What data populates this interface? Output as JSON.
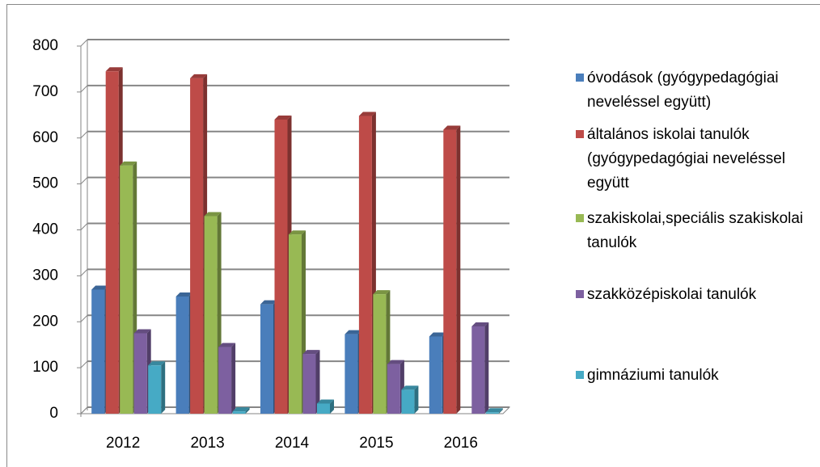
{
  "chart_data": {
    "type": "bar3d",
    "categories": [
      "2012",
      "2013",
      "2014",
      "2015",
      "2016"
    ],
    "series": [
      {
        "name": "óvodások (gyógypedagógiai neveléssel együtt)",
        "color": "#4a7ebb",
        "values": [
          270,
          255,
          238,
          173,
          168
        ]
      },
      {
        "name": "általános iskolai tanulók (gyógypedagógiai neveléssel együtt",
        "color": "#be4b48",
        "values": [
          745,
          730,
          640,
          648,
          618
        ]
      },
      {
        "name": "szakiskolai,speciális szakiskolai tanulók",
        "color": "#98b954",
        "values": [
          540,
          430,
          390,
          260,
          null
        ]
      },
      {
        "name": "szakközépiskolai tanulók",
        "color": "#7d60a0",
        "values": [
          175,
          145,
          130,
          108,
          190
        ]
      },
      {
        "name": "gimnáziumi tanulók",
        "color": "#46aac5",
        "values": [
          105,
          5,
          22,
          52,
          3
        ]
      }
    ],
    "ylim": [
      0,
      800
    ],
    "yticks": [
      0,
      100,
      200,
      300,
      400,
      500,
      600,
      700,
      800
    ],
    "grid": true
  }
}
